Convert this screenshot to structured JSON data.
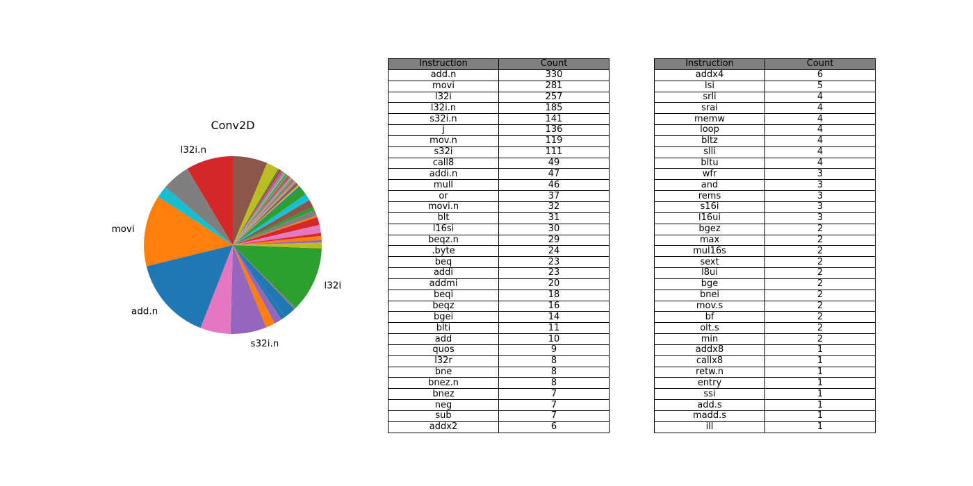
{
  "chart_data": [
    {
      "type": "pie",
      "title": "Conv2D",
      "labels": [
        "add.n",
        "movi",
        "l32i",
        "l32i.n",
        "s32i.n",
        "j",
        "mov.n",
        "s32i",
        "call8",
        "addi.n",
        "mull",
        "or",
        "movi.n",
        "blt",
        "l16si",
        "beqz.n",
        ".byte",
        "beq",
        "addi",
        "addmi",
        "beqi",
        "beqz",
        "bgei",
        "blti",
        "add",
        "quos",
        "l32r",
        "bne",
        "bnez.n",
        "bnez",
        "neg",
        "sub",
        "addx2",
        "addx4",
        "lsi",
        "srli",
        "srai",
        "memw",
        "loop",
        "bltz",
        "slli",
        "bltu",
        "wfr",
        "and",
        "rems",
        "s16i",
        "l16ui",
        "bgez",
        "max",
        "mul16s",
        "sext",
        "l8ui",
        "bge",
        "bnei",
        "mov.s",
        "bf",
        "olt.s",
        "min",
        "addx8",
        "callx8",
        "retw.n",
        "entry",
        "ssi",
        "add.s",
        "madd.s",
        "ill"
      ],
      "values": [
        330,
        281,
        257,
        185,
        141,
        136,
        119,
        111,
        49,
        47,
        46,
        37,
        32,
        31,
        30,
        29,
        24,
        23,
        23,
        20,
        18,
        16,
        14,
        11,
        10,
        9,
        8,
        8,
        8,
        7,
        7,
        7,
        6,
        6,
        5,
        4,
        4,
        4,
        4,
        4,
        4,
        4,
        3,
        3,
        3,
        3,
        3,
        2,
        2,
        2,
        2,
        2,
        2,
        2,
        2,
        2,
        2,
        2,
        1,
        1,
        1,
        1,
        1,
        1,
        1,
        1
      ],
      "order": [
        "j",
        "call8",
        "addx2",
        "addx4",
        "lsi",
        "srli",
        "srai",
        "memw",
        "loop",
        "bltz",
        "slli",
        "bltu",
        "wfr",
        "and",
        "rems",
        "s16i",
        "l16ui",
        "bgez",
        "max",
        "mul16s",
        "sext",
        "l8ui",
        "bge",
        "bnei",
        "mov.s",
        "bf",
        "olt.s",
        "min",
        "addx8",
        "callx8",
        "retw.n",
        "entry",
        "ssi",
        "add.s",
        "madd.s",
        "ill",
        "quos",
        "bnez.n",
        "neg",
        "movi.n",
        "addmi",
        "bnez",
        "beqz.n",
        "bgei",
        "beq",
        "sub",
        "blt",
        "l32r",
        ".byte",
        "blti",
        "beqz",
        "add",
        "addi",
        "l32i",
        "bne",
        "mull",
        "beqi",
        "l16si",
        "or",
        "s32i.n",
        "mov.n",
        "add.n",
        "movi",
        "addi.n",
        "s32i",
        "l32i.n"
      ],
      "visible_labels": [
        "movi",
        "l32i.n",
        "add.n",
        "s32i.n",
        "l32i"
      ],
      "start_angle_deg": 90,
      "direction": "clockwise"
    },
    {
      "type": "table",
      "columns": [
        "Instruction",
        "Count"
      ],
      "rows": [
        [
          "add.n",
          "330"
        ],
        [
          "movi",
          "281"
        ],
        [
          "l32i",
          "257"
        ],
        [
          "l32i.n",
          "185"
        ],
        [
          "s32i.n",
          "141"
        ],
        [
          "j",
          "136"
        ],
        [
          "mov.n",
          "119"
        ],
        [
          "s32i",
          "111"
        ],
        [
          "call8",
          "49"
        ],
        [
          "addi.n",
          "47"
        ],
        [
          "mull",
          "46"
        ],
        [
          "or",
          "37"
        ],
        [
          "movi.n",
          "32"
        ],
        [
          "blt",
          "31"
        ],
        [
          "l16si",
          "30"
        ],
        [
          "beqz.n",
          "29"
        ],
        [
          ".byte",
          "24"
        ],
        [
          "beq",
          "23"
        ],
        [
          "addi",
          "23"
        ],
        [
          "addmi",
          "20"
        ],
        [
          "beqi",
          "18"
        ],
        [
          "beqz",
          "16"
        ],
        [
          "bgei",
          "14"
        ],
        [
          "blti",
          "11"
        ],
        [
          "add",
          "10"
        ],
        [
          "quos",
          "9"
        ],
        [
          "l32r",
          "8"
        ],
        [
          "bne",
          "8"
        ],
        [
          "bnez.n",
          "8"
        ],
        [
          "bnez",
          "7"
        ],
        [
          "neg",
          "7"
        ],
        [
          "sub",
          "7"
        ],
        [
          "addx2",
          "6"
        ]
      ]
    },
    {
      "type": "table",
      "columns": [
        "Instruction",
        "Count"
      ],
      "rows": [
        [
          "addx4",
          "6"
        ],
        [
          "lsi",
          "5"
        ],
        [
          "srli",
          "4"
        ],
        [
          "srai",
          "4"
        ],
        [
          "memw",
          "4"
        ],
        [
          "loop",
          "4"
        ],
        [
          "bltz",
          "4"
        ],
        [
          "slli",
          "4"
        ],
        [
          "bltu",
          "4"
        ],
        [
          "wfr",
          "3"
        ],
        [
          "and",
          "3"
        ],
        [
          "rems",
          "3"
        ],
        [
          "s16i",
          "3"
        ],
        [
          "l16ui",
          "3"
        ],
        [
          "bgez",
          "2"
        ],
        [
          "max",
          "2"
        ],
        [
          "mul16s",
          "2"
        ],
        [
          "sext",
          "2"
        ],
        [
          "l8ui",
          "2"
        ],
        [
          "bge",
          "2"
        ],
        [
          "bnei",
          "2"
        ],
        [
          "mov.s",
          "2"
        ],
        [
          "bf",
          "2"
        ],
        [
          "olt.s",
          "2"
        ],
        [
          "min",
          "2"
        ],
        [
          "addx8",
          "1"
        ],
        [
          "callx8",
          "1"
        ],
        [
          "retw.n",
          "1"
        ],
        [
          "entry",
          "1"
        ],
        [
          "ssi",
          "1"
        ],
        [
          "add.s",
          "1"
        ],
        [
          "madd.s",
          "1"
        ],
        [
          "ill",
          "1"
        ]
      ]
    }
  ],
  "colors": {
    "palette": [
      "#1f77b4",
      "#ff7f0e",
      "#2ca02c",
      "#d62728",
      "#9467bd",
      "#8c564b",
      "#e377c2",
      "#7f7f7f",
      "#bcbd22",
      "#17becf"
    ],
    "table_header_bg": "#808080",
    "table_border": "#000000"
  }
}
